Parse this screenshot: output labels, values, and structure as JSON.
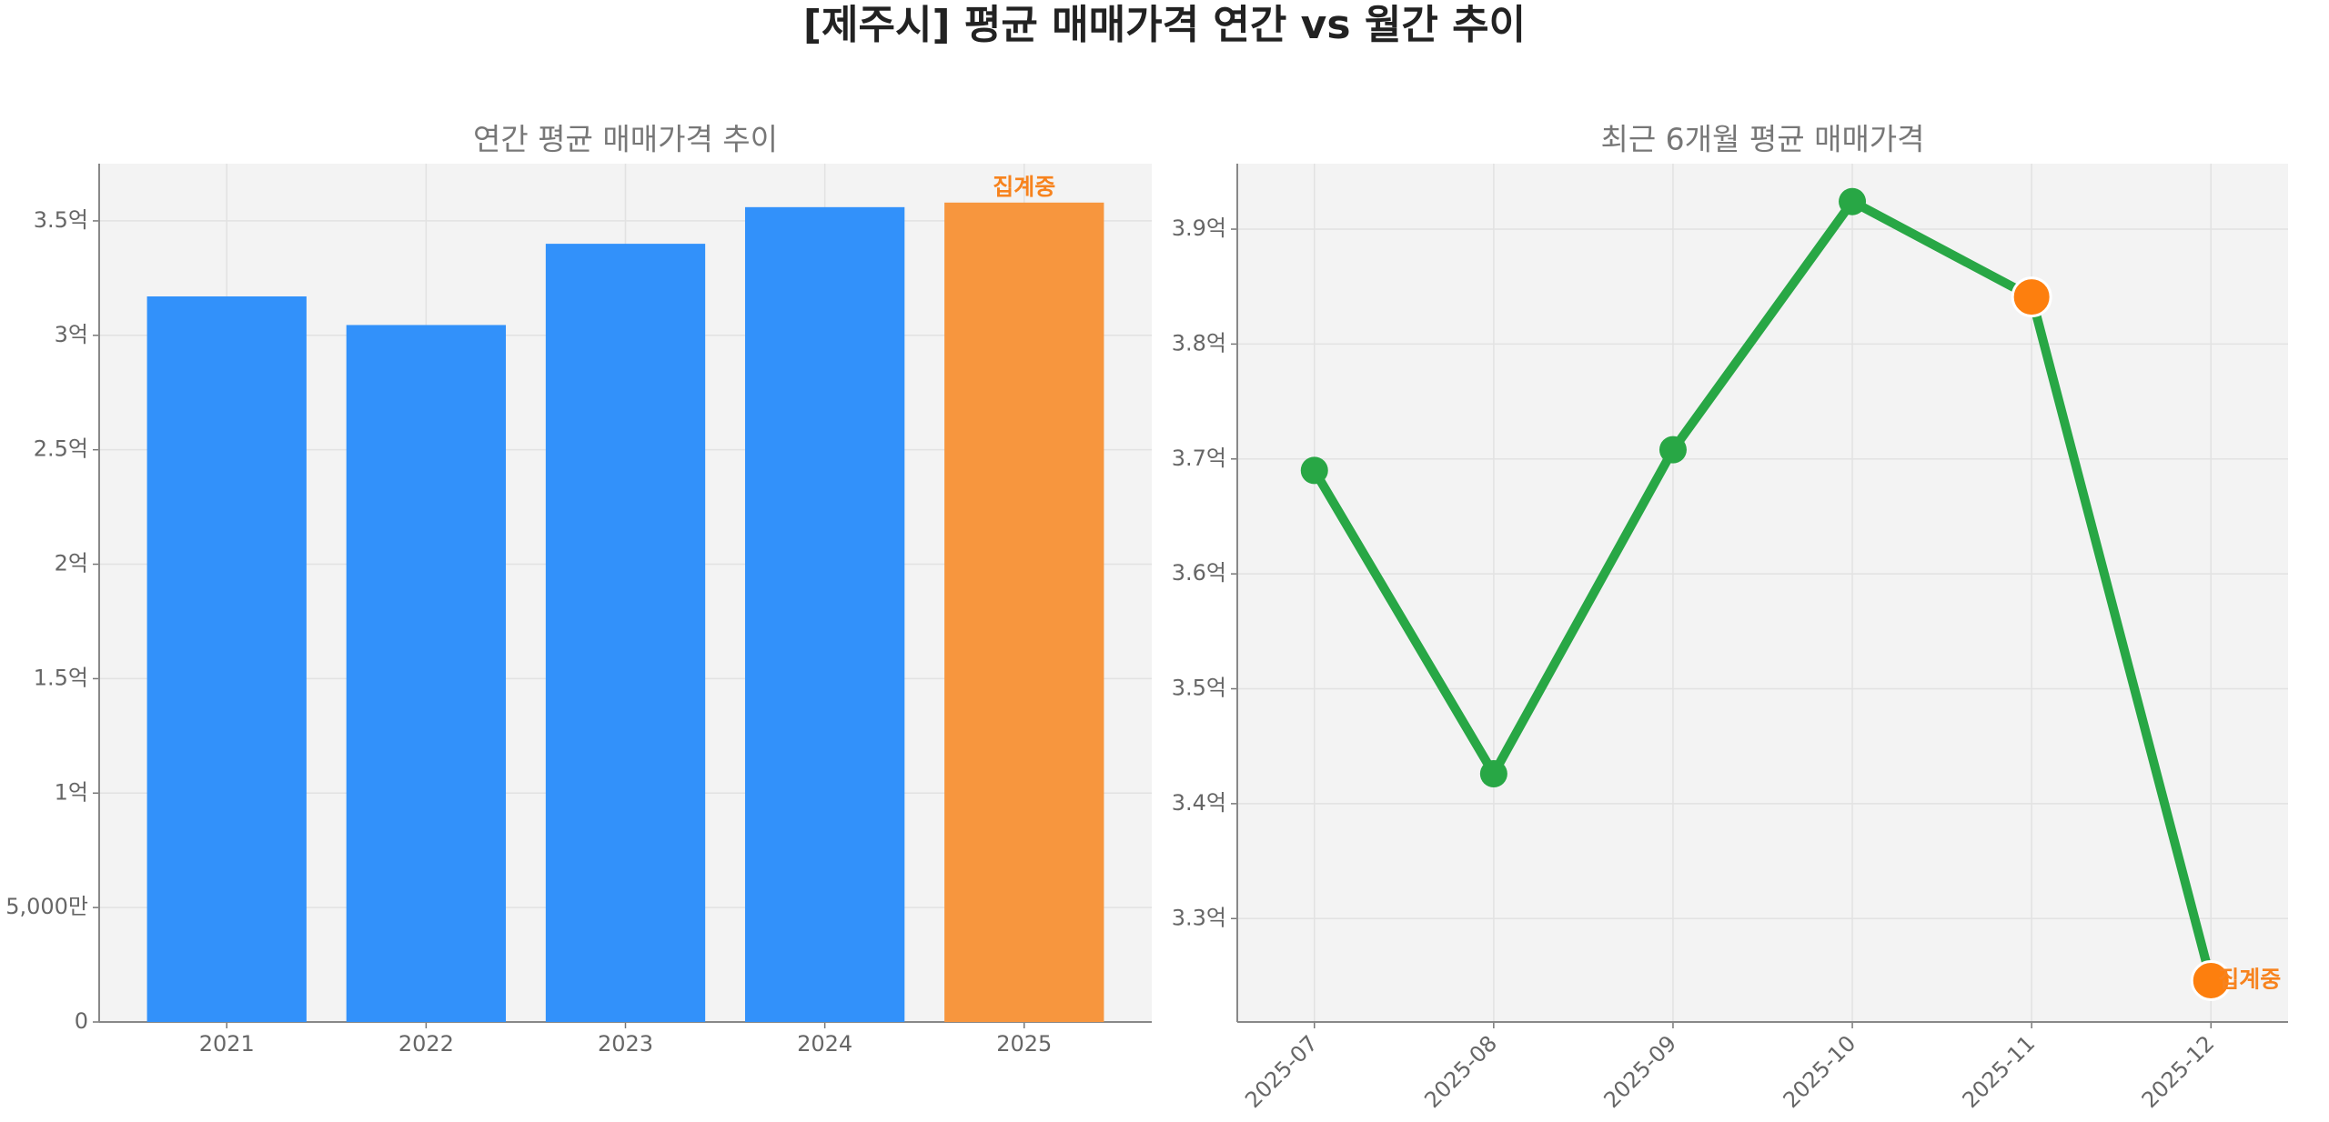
{
  "title": "[제주시] 평균 매매가격 연간 vs 월간 추이",
  "chart_data": [
    {
      "type": "bar",
      "title": "연간 평균 매매가격 추이",
      "categories": [
        "2021",
        "2022",
        "2023",
        "2024",
        "2025"
      ],
      "values": [
        317000000,
        304500000,
        340000000,
        356000000,
        358000000
      ],
      "colors": [
        "#3291fa",
        "#3291fa",
        "#3291fa",
        "#3291fa",
        "#f7963e"
      ],
      "ylim": [
        0,
        375000000
      ],
      "yticks": [
        0,
        {
          "value": 50000000,
          "label": "5,000만"
        },
        {
          "value": 100000000,
          "label": "1억"
        },
        {
          "value": 150000000,
          "label": "1.5억"
        },
        {
          "value": 200000000,
          "label": "2억"
        },
        {
          "value": 250000000,
          "label": "2.5억"
        },
        {
          "value": 300000000,
          "label": "3억"
        },
        {
          "value": 350000000,
          "label": "3.5억"
        }
      ],
      "grid": true,
      "annotations": [
        {
          "text": "집계중",
          "x": "2025",
          "color": "#f7831e"
        }
      ]
    },
    {
      "type": "line",
      "title": "최근 6개월 평균 매매가격",
      "categories": [
        "2025-07",
        "2025-08",
        "2025-09",
        "2025-10",
        "2025-11",
        "2025-12"
      ],
      "values": [
        369000000,
        342600000,
        370800000,
        392400000,
        384100000,
        324600000
      ],
      "color": "#28a745",
      "marker_colors": [
        "#28a745",
        "#28a745",
        "#28a745",
        "#28a745",
        "#fd7f0e",
        "#fd7f0e"
      ],
      "ylim": [
        321000000,
        395700000
      ],
      "yticks": [
        {
          "value": 330000000,
          "label": "3.3억"
        },
        {
          "value": 340000000,
          "label": "3.4억"
        },
        {
          "value": 350000000,
          "label": "3.5억"
        },
        {
          "value": 360000000,
          "label": "3.6억"
        },
        {
          "value": 370000000,
          "label": "3.7억"
        },
        {
          "value": 380000000,
          "label": "3.8억"
        },
        {
          "value": 390000000,
          "label": "3.9억"
        }
      ],
      "grid": true,
      "annotations": [
        {
          "text": "집계중",
          "x": "2025-12",
          "color": "#f7831e"
        }
      ]
    }
  ]
}
